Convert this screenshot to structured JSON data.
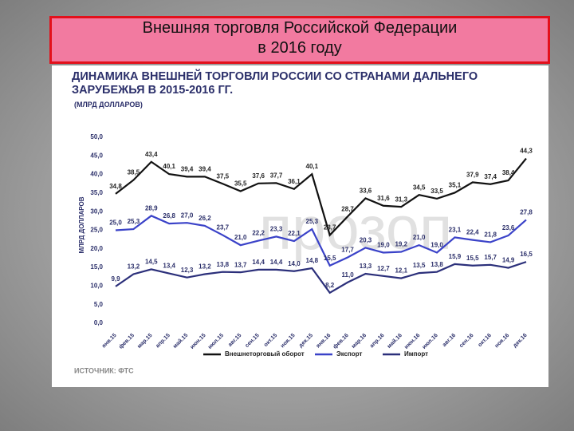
{
  "slide_title": [
    "Внешняя торговля Российской Федерации",
    "в 2016 году"
  ],
  "chart_data": {
    "type": "line",
    "title": "ДИНАМИКА ВНЕШНЕЙ ТОРГОВЛИ РОССИИ СО СТРАНАМИ ДАЛЬНЕГО ЗАРУБЕЖЬЯ В 2015-2016 ГГ.",
    "subtitle": "(МЛРД ДОЛЛАРОВ)",
    "y_label": "МЛРД ДОЛЛАРОВ",
    "source": "ИСТОЧНИК: ФТС",
    "watermark": "прозоп",
    "categories": [
      "янв.15",
      "фев.15",
      "мар.15",
      "апр.15",
      "май.15",
      "июн.15",
      "июл.15",
      "авг.15",
      "сен.15",
      "окт.15",
      "ноя.15",
      "дек.15",
      "янв.16",
      "фев.16",
      "мар.16",
      "апр.16",
      "май.16",
      "июн.16",
      "июл.16",
      "авг.16",
      "сен.16",
      "окт.16",
      "ноя.16",
      "дек.16"
    ],
    "series": [
      {
        "name": "Внешнеторговый оборот",
        "color": "#111111",
        "values": [
          34.8,
          38.5,
          43.4,
          40.1,
          39.4,
          39.4,
          37.5,
          35.5,
          37.6,
          37.7,
          36.1,
          40.1,
          23.7,
          28.7,
          33.6,
          31.6,
          31.3,
          34.5,
          33.5,
          35.1,
          37.9,
          37.4,
          38.4,
          44.3
        ],
        "value_labels": [
          "34,8",
          "38,5",
          "43,4",
          "40,1",
          "39,4",
          "39,4",
          "37,5",
          "35,5",
          "37,6",
          "37,7",
          "36,1",
          "40,1",
          "23,7",
          "28,7",
          "33,6",
          "31,6",
          "31,3",
          "34,5",
          "33,5",
          "35,1",
          "37,9",
          "37,4",
          "38,4",
          "44,3"
        ]
      },
      {
        "name": "Экспорт",
        "color": "#3a42c8",
        "values": [
          25.0,
          25.3,
          28.9,
          26.8,
          27.0,
          26.2,
          23.7,
          21.0,
          22.2,
          23.3,
          22.1,
          25.3,
          15.5,
          17.7,
          20.3,
          19.0,
          19.2,
          21.0,
          19.0,
          23.1,
          22.4,
          21.8,
          23.6,
          27.8
        ],
        "value_labels": [
          "25,0",
          "25,3",
          "28,9",
          "26,8",
          "27,0",
          "26,2",
          "23,7",
          "21,0",
          "22,2",
          "23,3",
          "22,1",
          "25,3",
          "15,5",
          "17,7",
          "20,3",
          "19,0",
          "19,2",
          "21,0",
          "19,0",
          "23,1",
          "22,4",
          "21,8",
          "23,6",
          "27,8"
        ]
      },
      {
        "name": "Импорт",
        "color": "#2b2f7a",
        "values": [
          9.9,
          13.2,
          14.5,
          13.4,
          12.3,
          13.2,
          13.8,
          13.7,
          14.4,
          14.4,
          14.0,
          14.8,
          8.2,
          11.0,
          13.3,
          12.7,
          12.1,
          13.5,
          13.8,
          15.9,
          15.5,
          15.7,
          14.9,
          16.5
        ],
        "value_labels": [
          "9,9",
          "13,2",
          "14,5",
          "13,4",
          "12,3",
          "13,2",
          "13,8",
          "13,7",
          "14,4",
          "14,4",
          "14,0",
          "14,8",
          "8,2",
          "11,0",
          "13,3",
          "12,7",
          "12,1",
          "13,5",
          "13,8",
          "15,9",
          "15,5",
          "15,7",
          "14,9",
          "16,5"
        ]
      }
    ],
    "ylim": [
      0,
      50
    ],
    "yticks": [
      {
        "value": 0,
        "label": "0,0"
      },
      {
        "value": 5,
        "label": "5,0"
      },
      {
        "value": 10,
        "label": "10,0"
      },
      {
        "value": 15,
        "label": "15,0"
      },
      {
        "value": 20,
        "label": "20,0"
      },
      {
        "value": 25,
        "label": "25,0"
      },
      {
        "value": 30,
        "label": "30,0"
      },
      {
        "value": 35,
        "label": "35,0"
      },
      {
        "value": 40,
        "label": "40,0"
      },
      {
        "value": 45,
        "label": "45,0"
      },
      {
        "value": 50,
        "label": "50,0"
      }
    ],
    "grid": false
  }
}
